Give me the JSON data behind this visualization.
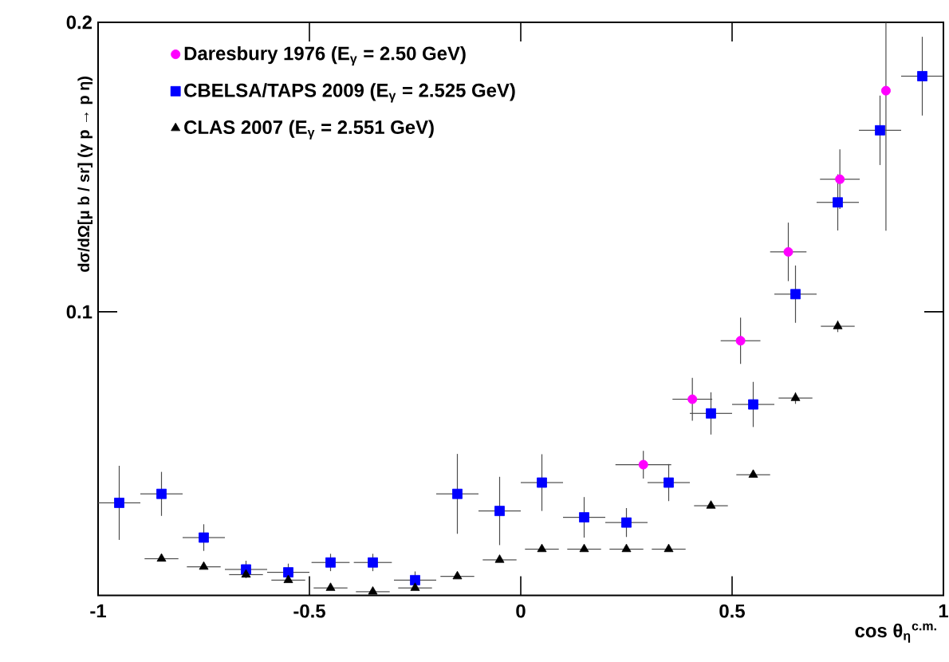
{
  "chart_data": {
    "type": "scatter",
    "xlabel": "cos θ$_{η}$$^{c.m.}$",
    "ylabel": "dσ/dΩ[μ b / sr] (γ p → p η)",
    "xlim": [
      -1,
      1
    ],
    "ylim": [
      0.002,
      0.2
    ],
    "xticks": [
      -1,
      -0.5,
      0,
      0.5,
      1
    ],
    "yticks": [
      0.1,
      0.2
    ],
    "grid": false,
    "legend": "top left",
    "series": [
      {
        "name": "Daresbury 1976 (E$_{γ}$ = 2.50 GeV)",
        "color": "#ff00ff",
        "marker": "circle",
        "x": [
          0.29,
          0.406,
          0.52,
          0.633,
          0.755,
          0.864
        ],
        "values": [
          0.0472,
          0.0698,
          0.09,
          0.1207,
          0.1458,
          0.1764
        ],
        "errors": [
          0.0048,
          0.0074,
          0.008,
          0.0101,
          0.0103,
          [
            0.128,
            0.2
          ]
        ],
        "xerrors": [
          0.066,
          0.047,
          0.047,
          0.043,
          0.047,
          null
        ]
      },
      {
        "name": "CBELSA/TAPS 2009 (E$_{γ}$ = 2.525 GeV)",
        "color": "#0000ff",
        "marker": "square",
        "x": [
          -0.95,
          -0.85,
          -0.75,
          -0.65,
          -0.55,
          -0.45,
          -0.35,
          -0.25,
          -0.15,
          -0.05,
          0.05,
          0.15,
          0.25,
          0.35,
          0.45,
          0.55,
          0.65,
          0.75,
          0.85,
          0.95
        ],
        "values": [
          0.034,
          0.0371,
          0.022,
          0.011,
          0.01,
          0.0134,
          0.0134,
          0.0073,
          0.0371,
          0.0312,
          0.041,
          0.029,
          0.0272,
          0.041,
          0.0649,
          0.068,
          0.1061,
          0.1378,
          0.1627,
          0.1814
        ],
        "errors": [
          0.0128,
          0.0076,
          0.0046,
          0.003,
          0.003,
          0.003,
          0.003,
          0.003,
          0.0138,
          0.0118,
          0.0098,
          0.007,
          0.005,
          0.0064,
          0.0073,
          0.0078,
          0.0099,
          0.0097,
          0.012,
          0.0136
        ],
        "xerrors": [
          0.05,
          0.05,
          0.05,
          0.05,
          0.05,
          0.045,
          0.045,
          0.05,
          0.05,
          0.05,
          0.05,
          0.05,
          0.05,
          0.05,
          0.05,
          0.05,
          0.05,
          0.05,
          0.05,
          0.05
        ]
      },
      {
        "name": "CLAS 2007 (E$_{γ}$ = 2.551 GeV)",
        "color": "#000000",
        "marker": "triangle",
        "x": [
          -0.85,
          -0.75,
          -0.65,
          -0.55,
          -0.45,
          -0.35,
          -0.25,
          -0.15,
          -0.05,
          0.05,
          0.15,
          0.25,
          0.35,
          0.45,
          0.55,
          0.65,
          0.75
        ],
        "values": [
          0.0147,
          0.0119,
          0.0092,
          0.0073,
          0.0046,
          0.0033,
          0.0046,
          0.0086,
          0.0143,
          0.018,
          0.018,
          0.018,
          0.018,
          0.033,
          0.0437,
          0.0702,
          0.095
        ],
        "errors": [
          null,
          null,
          null,
          null,
          null,
          null,
          null,
          null,
          null,
          null,
          null,
          null,
          null,
          null,
          null,
          0.002,
          0.002
        ],
        "xerrors": [
          0.04,
          0.04,
          0.04,
          0.04,
          0.04,
          0.04,
          0.04,
          0.04,
          0.04,
          0.04,
          0.04,
          0.04,
          0.04,
          0.04,
          0.04,
          0.04,
          0.04
        ]
      }
    ]
  }
}
